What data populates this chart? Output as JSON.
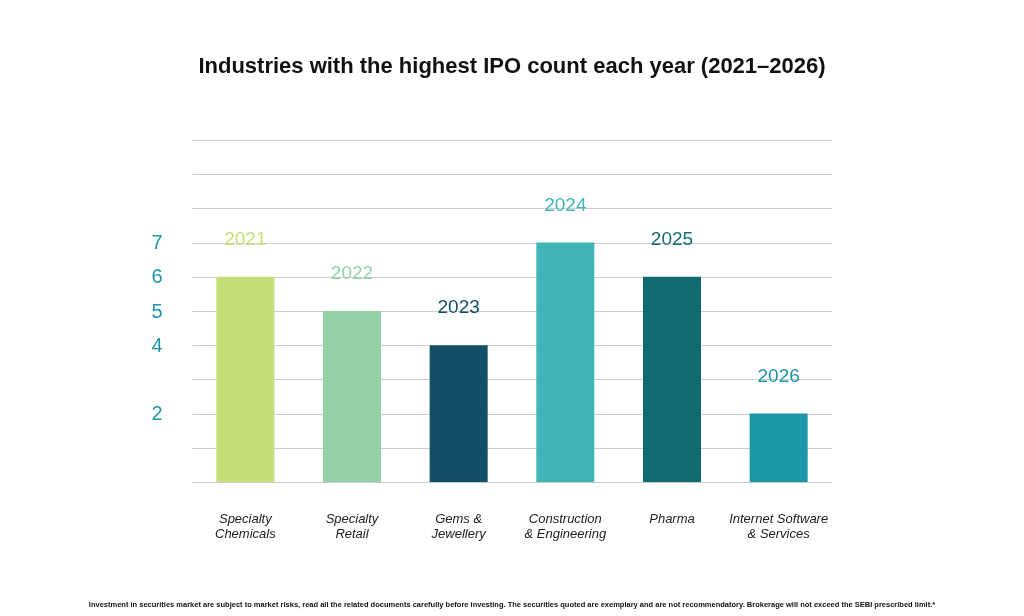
{
  "chart_data": {
    "type": "bar",
    "title": "Industries with the highest IPO count each year (2021–2026)",
    "categories": [
      "Specialty Chemicals",
      "Specialty Retail",
      "Gems & Jewellery",
      "Construction & Engineering",
      "Pharma",
      "Internet Software & Services"
    ],
    "values": [
      6,
      5,
      4,
      7,
      6,
      2
    ],
    "colors": [
      "#c5de77",
      "#93d1a6",
      "#124e66",
      "#3fb5b8",
      "#136b72",
      "#1b96a8"
    ],
    "ylim": [
      0,
      10
    ],
    "yticks": [
      {
        "value": 0,
        "label": null
      },
      {
        "value": 1,
        "label": null
      },
      2,
      {
        "value": 3,
        "label": null
      },
      4,
      5,
      6,
      7,
      {
        "value": 8,
        "label": null
      },
      {
        "value": 9,
        "label": null
      },
      {
        "value": 10,
        "label": null
      }
    ],
    "grid": "y",
    "annotations": [
      {
        "text": "2021",
        "x": "Specialty Chemicals",
        "y": 6
      },
      {
        "text": "2022",
        "x": "Specialty Retail",
        "y": 5
      },
      {
        "text": "2023",
        "x": "Gems & Jewellery",
        "y": 4
      },
      {
        "text": "2024",
        "x": "Construction & Engineering",
        "y": 7
      },
      {
        "text": "2025",
        "x": "Pharma",
        "y": 6
      },
      {
        "text": "2026",
        "x": "Internet Software & Services",
        "y": 2
      },
      "Investment in securities market are subject to market risks, read all the related documents carefully before investing. The securities quoted are exemplary and are not recommendatory. Brokerage will not exceed the SEBI prescribed limit.*"
    ]
  }
}
